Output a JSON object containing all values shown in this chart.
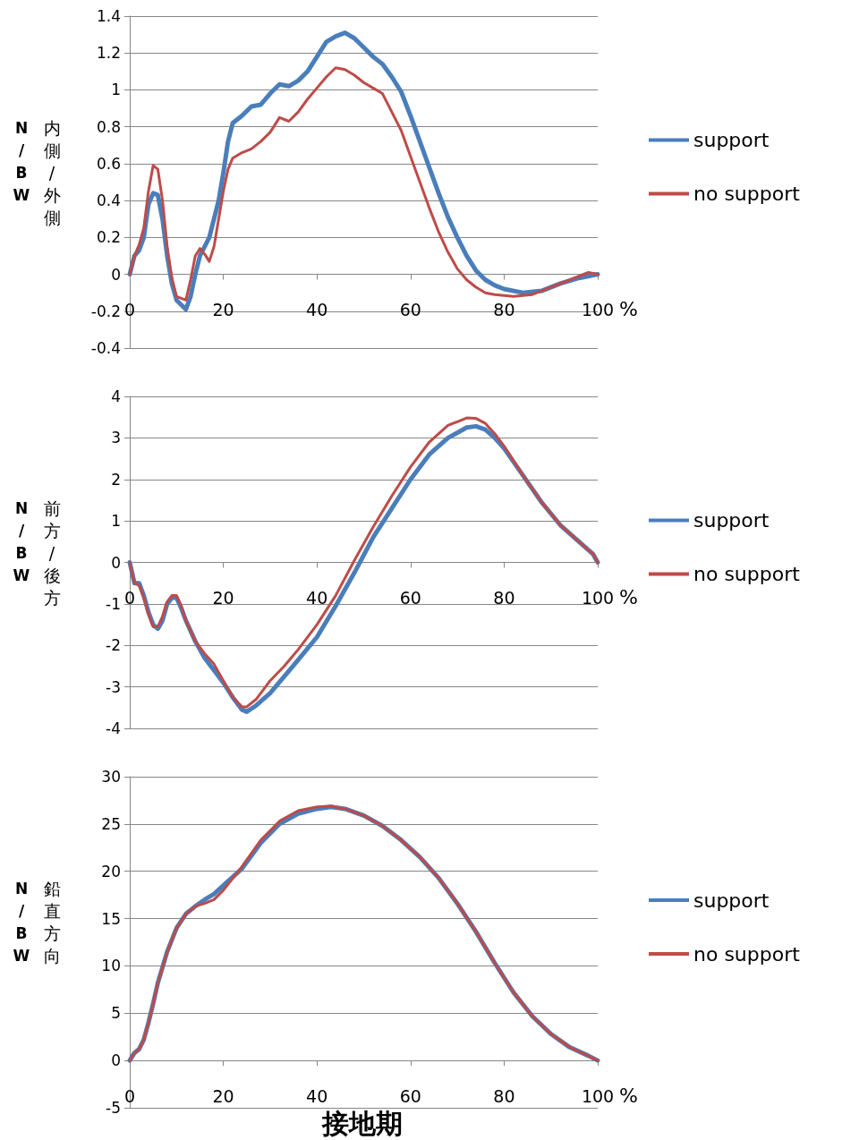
{
  "chart_data": [
    {
      "type": "line",
      "ylabel": "内側/外側",
      "annotations": [
        "N/BW"
      ],
      "xlabel": "%",
      "xlim": [
        0,
        100
      ],
      "xticks": [
        0,
        20,
        40,
        60,
        80,
        100
      ],
      "ylim": [
        -0.4,
        1.4
      ],
      "yticks": [
        -0.4,
        -0.2,
        0,
        0.2,
        0.4,
        0.6,
        0.8,
        1,
        1.2,
        1.4
      ],
      "grid": "y",
      "legend": "right",
      "marker": "none",
      "line_style": "solid",
      "series": [
        {
          "name": "support",
          "color": "#4a7ebb",
          "x": [
            0,
            1,
            2,
            3,
            4,
            5,
            6,
            7,
            8,
            9,
            10,
            12,
            13,
            14,
            15,
            17,
            19,
            20,
            21,
            22,
            24,
            26,
            28,
            30,
            32,
            34,
            36,
            38,
            40,
            42,
            44,
            46,
            48,
            50,
            52,
            54,
            56,
            58,
            60,
            62,
            64,
            66,
            68,
            70,
            72,
            74,
            76,
            78,
            80,
            84,
            88,
            92,
            96,
            100
          ],
          "values": [
            0,
            0.1,
            0.13,
            0.2,
            0.38,
            0.44,
            0.43,
            0.3,
            0.1,
            -0.05,
            -0.14,
            -0.19,
            -0.12,
            0,
            0.1,
            0.2,
            0.4,
            0.55,
            0.72,
            0.82,
            0.86,
            0.91,
            0.92,
            0.98,
            1.03,
            1.02,
            1.05,
            1.1,
            1.18,
            1.26,
            1.29,
            1.31,
            1.28,
            1.23,
            1.18,
            1.14,
            1.07,
            0.99,
            0.86,
            0.72,
            0.58,
            0.44,
            0.31,
            0.2,
            0.1,
            0.02,
            -0.03,
            -0.06,
            -0.08,
            -0.1,
            -0.09,
            -0.05,
            -0.02,
            0
          ]
        },
        {
          "name": "no support",
          "color": "#be4b48",
          "x": [
            0,
            1,
            2,
            3,
            4,
            5,
            6,
            7,
            8,
            9,
            10,
            12,
            13,
            14,
            15,
            16,
            17,
            18,
            19,
            20,
            21,
            22,
            24,
            26,
            28,
            30,
            32,
            34,
            36,
            38,
            40,
            42,
            44,
            46,
            48,
            50,
            52,
            54,
            56,
            58,
            60,
            62,
            64,
            66,
            68,
            70,
            72,
            74,
            76,
            78,
            82,
            86,
            90,
            94,
            98,
            100
          ],
          "values": [
            0,
            0.1,
            0.16,
            0.25,
            0.45,
            0.59,
            0.57,
            0.4,
            0.15,
            -0.02,
            -0.12,
            -0.14,
            -0.03,
            0.1,
            0.14,
            0.11,
            0.07,
            0.15,
            0.3,
            0.45,
            0.57,
            0.63,
            0.66,
            0.68,
            0.72,
            0.77,
            0.85,
            0.83,
            0.88,
            0.95,
            1.01,
            1.07,
            1.12,
            1.11,
            1.08,
            1.04,
            1.01,
            0.98,
            0.88,
            0.78,
            0.64,
            0.5,
            0.36,
            0.23,
            0.12,
            0.03,
            -0.03,
            -0.07,
            -0.1,
            -0.11,
            -0.12,
            -0.11,
            -0.07,
            -0.03,
            0.01,
            0
          ]
        }
      ]
    },
    {
      "type": "line",
      "ylabel": "前方/後方",
      "annotations": [
        "N/BW"
      ],
      "xlabel": "%",
      "xlim": [
        0,
        100
      ],
      "xticks": [
        0,
        20,
        40,
        60,
        80,
        100
      ],
      "ylim": [
        -4,
        4
      ],
      "yticks": [
        -4,
        -3,
        -2,
        -1,
        0,
        1,
        2,
        3,
        4
      ],
      "grid": "y",
      "legend": "right",
      "marker": "none",
      "line_style": "solid",
      "series": [
        {
          "name": "support",
          "color": "#4a7ebb",
          "x": [
            0,
            1,
            2,
            3,
            4,
            5,
            6,
            7,
            8,
            9,
            10,
            11,
            12,
            14,
            16,
            18,
            20,
            22,
            24,
            25,
            27,
            30,
            33,
            36,
            40,
            44,
            48,
            52,
            56,
            60,
            64,
            68,
            72,
            74,
            76,
            78,
            80,
            84,
            88,
            92,
            96,
            98,
            99,
            100
          ],
          "values": [
            0,
            -0.5,
            -0.5,
            -0.8,
            -1.2,
            -1.5,
            -1.6,
            -1.4,
            -1.0,
            -0.85,
            -0.85,
            -1.1,
            -1.4,
            -1.9,
            -2.3,
            -2.6,
            -2.9,
            -3.25,
            -3.55,
            -3.6,
            -3.45,
            -3.15,
            -2.75,
            -2.35,
            -1.8,
            -1.05,
            -0.25,
            0.6,
            1.3,
            2.0,
            2.6,
            3.0,
            3.25,
            3.28,
            3.2,
            3.0,
            2.75,
            2.1,
            1.45,
            0.9,
            0.5,
            0.3,
            0.2,
            0
          ]
        },
        {
          "name": "no support",
          "color": "#be4b48",
          "x": [
            0,
            1,
            2,
            3,
            4,
            5,
            6,
            7,
            8,
            9,
            10,
            11,
            12,
            14,
            16,
            18,
            20,
            22,
            24,
            25,
            27,
            30,
            33,
            36,
            40,
            44,
            48,
            52,
            56,
            60,
            64,
            68,
            72,
            74,
            76,
            78,
            80,
            84,
            88,
            92,
            96,
            98,
            99,
            100
          ],
          "values": [
            0,
            -0.5,
            -0.55,
            -0.85,
            -1.25,
            -1.55,
            -1.55,
            -1.3,
            -0.95,
            -0.8,
            -0.8,
            -1.05,
            -1.4,
            -1.9,
            -2.2,
            -2.45,
            -2.85,
            -3.25,
            -3.48,
            -3.48,
            -3.3,
            -2.85,
            -2.5,
            -2.1,
            -1.5,
            -0.8,
            0.05,
            0.85,
            1.6,
            2.3,
            2.9,
            3.3,
            3.48,
            3.47,
            3.35,
            3.1,
            2.8,
            2.1,
            1.45,
            0.9,
            0.5,
            0.3,
            0.2,
            0
          ]
        }
      ]
    },
    {
      "type": "line",
      "ylabel": "鉛直方向",
      "xlabel": "%",
      "annotations": [
        "N/BW",
        "接地期"
      ],
      "xlim": [
        0,
        100
      ],
      "xticks": [
        0,
        20,
        40,
        60,
        80,
        100
      ],
      "ylim": [
        -5,
        30
      ],
      "yticks": [
        -5,
        0,
        5,
        10,
        15,
        20,
        25,
        30
      ],
      "grid": "y",
      "legend": "right",
      "marker": "none",
      "line_style": "solid",
      "series": [
        {
          "name": "support",
          "color": "#4a7ebb",
          "x": [
            0,
            1,
            2,
            3,
            4,
            5,
            6,
            8,
            10,
            12,
            14,
            16,
            18,
            20,
            24,
            28,
            32,
            36,
            40,
            43,
            46,
            50,
            54,
            58,
            62,
            66,
            70,
            74,
            78,
            82,
            86,
            90,
            94,
            98,
            100
          ],
          "values": [
            0,
            0.8,
            1.2,
            2.2,
            4,
            6,
            8.2,
            11.5,
            14,
            15.5,
            16.3,
            17,
            17.6,
            18.5,
            20.3,
            23,
            25,
            26.1,
            26.6,
            26.8,
            26.6,
            25.9,
            24.8,
            23.3,
            21.5,
            19.3,
            16.6,
            13.6,
            10.3,
            7.2,
            4.7,
            2.8,
            1.4,
            0.5,
            0
          ]
        },
        {
          "name": "no support",
          "color": "#be4b48",
          "x": [
            0,
            1,
            2,
            3,
            4,
            5,
            6,
            8,
            10,
            12,
            14,
            16,
            18,
            20,
            24,
            28,
            32,
            36,
            40,
            43,
            46,
            50,
            54,
            58,
            62,
            66,
            70,
            74,
            78,
            82,
            86,
            90,
            94,
            98,
            100
          ],
          "values": [
            0,
            0.8,
            1.2,
            2.2,
            4,
            6,
            8.2,
            11.5,
            14,
            15.5,
            16.3,
            16.6,
            17,
            18,
            20.5,
            23.3,
            25.3,
            26.4,
            26.8,
            26.9,
            26.6,
            25.9,
            24.8,
            23.3,
            21.5,
            19.3,
            16.6,
            13.6,
            10.3,
            7.2,
            4.7,
            2.8,
            1.4,
            0.5,
            0
          ]
        }
      ]
    }
  ]
}
